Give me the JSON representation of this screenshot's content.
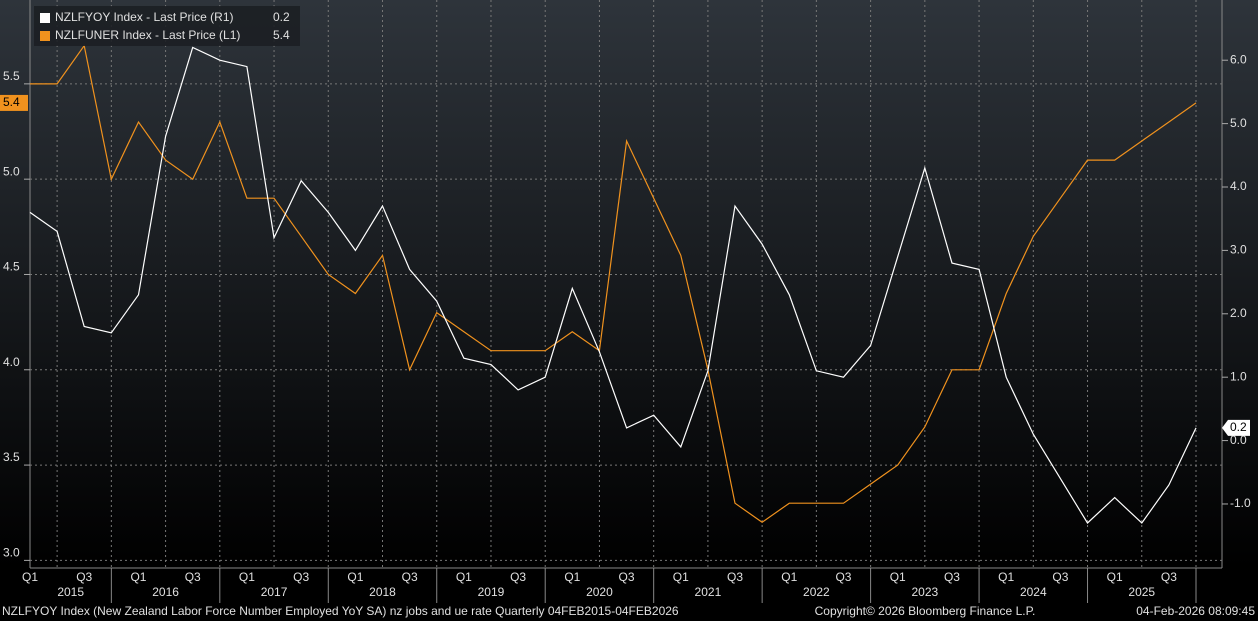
{
  "chart_data": {
    "type": "line",
    "categories": [
      "Q1",
      null,
      "Q3",
      null,
      "Q1",
      null,
      "Q3",
      null,
      "Q1",
      null,
      "Q3",
      null,
      "Q1",
      null,
      "Q3",
      null,
      "Q1",
      null,
      "Q3",
      null,
      "Q1",
      null,
      "Q3",
      null,
      "Q1",
      null,
      "Q3",
      null,
      "Q1",
      null,
      "Q3",
      null,
      "Q1",
      null,
      "Q3",
      null,
      "Q1",
      null,
      "Q3",
      null,
      "Q1",
      null,
      "Q3",
      null
    ],
    "years": [
      "2015",
      "2016",
      "2017",
      "2018",
      "2019",
      "2020",
      "2021",
      "2022",
      "2023",
      "2024",
      "2025"
    ],
    "series": [
      {
        "name": "NZLFYOY Index - Last Price (R1)",
        "color": "#ffffff",
        "axis": "y2",
        "values": [
          3.6,
          3.3,
          1.8,
          1.7,
          2.3,
          4.8,
          6.2,
          6.0,
          5.9,
          3.2,
          4.1,
          3.6,
          3.0,
          3.7,
          2.7,
          2.2,
          1.3,
          1.2,
          0.8,
          1.0,
          2.4,
          1.4,
          0.2,
          0.4,
          -0.1,
          1.1,
          3.7,
          3.1,
          2.3,
          1.1,
          1.0,
          1.5,
          2.9,
          4.3,
          2.8,
          2.7,
          1.0,
          0.1,
          -0.6,
          -1.3,
          -0.9,
          -1.3,
          -0.7,
          0.2
        ],
        "value_labels": [
          null,
          null,
          null,
          null,
          null,
          null,
          null,
          null,
          null,
          null,
          null,
          null,
          null,
          null,
          null,
          null,
          null,
          null,
          null,
          null,
          null,
          null,
          null,
          null,
          null,
          null,
          null,
          null,
          null,
          null,
          null,
          null,
          null,
          null,
          null,
          null,
          null,
          null,
          null,
          null,
          null,
          null,
          null,
          "0.2"
        ]
      },
      {
        "name": "NZLFUNER Index - Last Price (L1)",
        "color": "#f0921e",
        "axis": "y",
        "values": [
          5.5,
          5.5,
          5.7,
          5.0,
          5.3,
          5.1,
          5.0,
          5.3,
          4.9,
          4.9,
          4.7,
          4.5,
          4.4,
          4.6,
          4.0,
          4.3,
          4.2,
          4.1,
          4.1,
          4.1,
          4.2,
          4.1,
          5.2,
          4.9,
          4.6,
          4.0,
          3.3,
          3.2,
          3.3,
          3.3,
          3.3,
          3.4,
          3.5,
          3.7,
          4.0,
          4.0,
          4.4,
          4.7,
          4.9,
          5.1,
          5.1,
          5.2,
          5.3,
          5.4
        ],
        "value_labels": [
          null,
          null,
          null,
          null,
          null,
          null,
          null,
          null,
          null,
          null,
          null,
          null,
          null,
          null,
          null,
          null,
          null,
          null,
          null,
          null,
          null,
          null,
          null,
          null,
          null,
          null,
          null,
          null,
          null,
          null,
          null,
          null,
          null,
          null,
          null,
          null,
          null,
          null,
          null,
          null,
          null,
          null,
          null,
          "5.4"
        ]
      }
    ],
    "ylim": [
      2.96,
      5.94
    ],
    "yticks": [
      {
        "value": 3,
        "label": "3.0"
      },
      3.5,
      {
        "value": 4,
        "label": "4.0"
      },
      4.5,
      {
        "value": 5,
        "label": "5.0"
      },
      5.5
    ],
    "y2lim": [
      -2.01,
      6.95
    ],
    "y2ticks": [
      {
        "value": -1,
        "label": "-1.0"
      },
      {
        "value": 0,
        "label": "0.0"
      },
      {
        "value": 1,
        "label": "1.0"
      },
      {
        "value": 2,
        "label": "2.0"
      },
      {
        "value": 3,
        "label": "3.0"
      },
      {
        "value": 4,
        "label": "4.0"
      },
      {
        "value": 5,
        "label": "5.0"
      },
      {
        "value": 6,
        "label": "6.0"
      }
    ],
    "grid": true,
    "footer_left": "NZLFYOY Index (New Zealand Labor Force Number Employed YoY SA) nz jobs and ue rate Quarterly 04FEB2015-04FEB2026",
    "footer_center": "Copyright© 2026 Bloomberg Finance L.P.",
    "footer_right": "04-Feb-2026 08:09:45"
  }
}
